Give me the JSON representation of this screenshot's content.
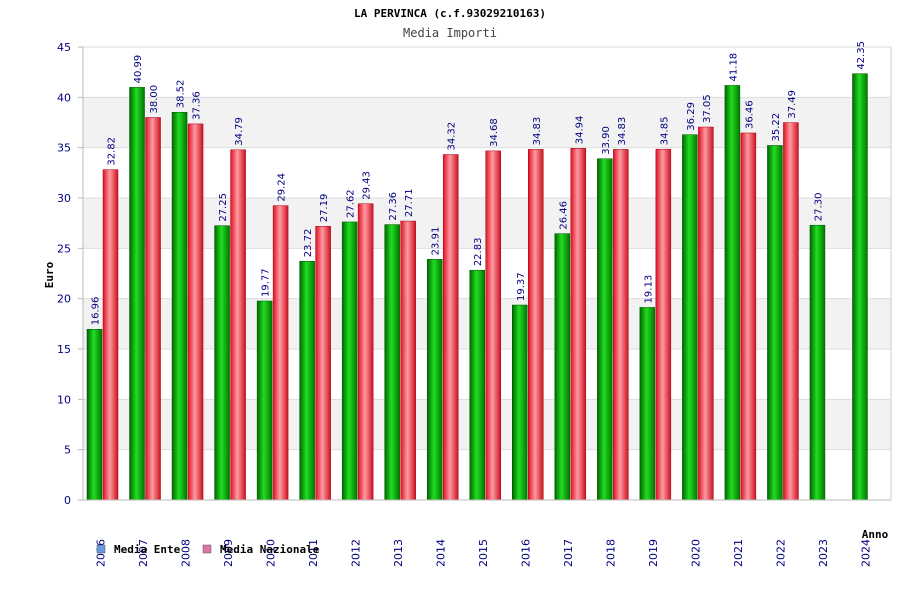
{
  "chart_data": {
    "type": "bar",
    "title": "LA PERVINCA (c.f.93029210163)",
    "subtitle": "Media Importi",
    "xlabel": "Anno",
    "ylabel": "Euro",
    "ylim": [
      0,
      45
    ],
    "yticks": [
      0,
      5,
      10,
      15,
      20,
      25,
      30,
      35,
      40,
      45
    ],
    "grid": true,
    "legend_position": "bottom-left",
    "categories": [
      "2006",
      "2007",
      "2008",
      "2009",
      "2010",
      "2011",
      "2012",
      "2013",
      "2014",
      "2015",
      "2016",
      "2017",
      "2018",
      "2019",
      "2020",
      "2021",
      "2022",
      "2023",
      "2024"
    ],
    "series": [
      {
        "name": "Media Ente",
        "color": "#00aa00",
        "legend_color": "#6699dd",
        "values": [
          16.96,
          40.99,
          38.52,
          27.25,
          19.77,
          23.72,
          27.62,
          27.36,
          23.91,
          22.83,
          19.37,
          26.46,
          33.9,
          19.13,
          36.29,
          41.18,
          35.22,
          27.3,
          42.35
        ],
        "labels": [
          "16.96",
          "40.99",
          "38.52",
          "27.25",
          "19.77",
          "23.72",
          "27.62",
          "27.36",
          "23.91",
          "22.83",
          "19.37",
          "26.46",
          "33.90",
          "19.13",
          "36.29",
          "41.18",
          "35.22",
          "27.30",
          "42.35"
        ]
      },
      {
        "name": "Media Nazionale",
        "color": "#ee2233",
        "legend_color": "#dd77aa",
        "values": [
          32.82,
          38.0,
          37.36,
          34.79,
          29.24,
          27.19,
          29.43,
          27.71,
          34.32,
          34.68,
          34.83,
          34.94,
          34.83,
          34.85,
          37.05,
          36.46,
          37.49,
          null,
          null
        ],
        "labels": [
          "32.82",
          "38.00",
          "37.36",
          "34.79",
          "29.24",
          "27.19",
          "29.43",
          "27.71",
          "34.32",
          "34.68",
          "34.83",
          "34.94",
          "34.83",
          "34.85",
          "37.05",
          "36.46",
          "37.49",
          null,
          null
        ]
      }
    ]
  }
}
